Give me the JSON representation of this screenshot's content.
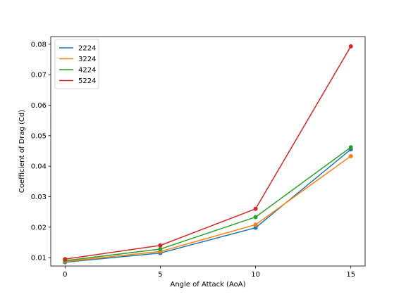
{
  "chart_data": {
    "type": "line",
    "title": "",
    "xlabel": "Angle of Attack (AoA)",
    "ylabel": "Coefficient of Drag (Cd)",
    "x": [
      0,
      5,
      10,
      15
    ],
    "xlim": [
      -0.75,
      15.75
    ],
    "ylim": [
      0.00725,
      0.0825
    ],
    "xticks": [
      0,
      5,
      10,
      15
    ],
    "xtick_labels": [
      "0",
      "5",
      "10",
      "15"
    ],
    "yticks": [
      0.01,
      0.02,
      0.03,
      0.04,
      0.05,
      0.06,
      0.07,
      0.08
    ],
    "ytick_labels": [
      "0.01",
      "0.02",
      "0.03",
      "0.04",
      "0.05",
      "0.06",
      "0.07",
      "0.08"
    ],
    "grid": false,
    "legend_position": "upper-left",
    "markers": "circle",
    "series": [
      {
        "name": "2224",
        "color": "#1f77b4",
        "values": [
          0.0085,
          0.0115,
          0.0198,
          0.0455
        ]
      },
      {
        "name": "3224",
        "color": "#ff7f0e",
        "values": [
          0.0087,
          0.012,
          0.0208,
          0.0433
        ]
      },
      {
        "name": "4224",
        "color": "#2ca02c",
        "values": [
          0.009,
          0.0128,
          0.0233,
          0.0462
        ]
      },
      {
        "name": "5224",
        "color": "#d62728",
        "values": [
          0.0095,
          0.014,
          0.026,
          0.0793
        ]
      }
    ]
  }
}
